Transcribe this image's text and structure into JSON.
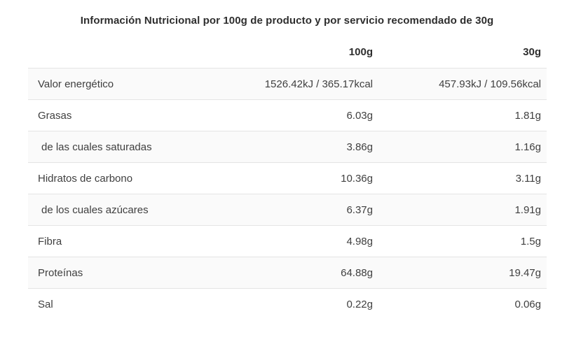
{
  "title": "Información Nutricional por 100g de producto y por servicio recomendado de 30g",
  "table": {
    "columns": [
      "100g",
      "30g"
    ],
    "rows": [
      {
        "label": "Valor energético",
        "v100": "1526.42kJ / 365.17kcal",
        "v30": "457.93kJ / 109.56kcal",
        "indent": false
      },
      {
        "label": "Grasas",
        "v100": "6.03g",
        "v30": "1.81g",
        "indent": false
      },
      {
        "label": "de las cuales saturadas",
        "v100": "3.86g",
        "v30": "1.16g",
        "indent": true
      },
      {
        "label": "Hidratos de carbono",
        "v100": "10.36g",
        "v30": "3.11g",
        "indent": false
      },
      {
        "label": "de los cuales azúcares",
        "v100": "6.37g",
        "v30": "1.91g",
        "indent": true
      },
      {
        "label": "Fibra",
        "v100": "4.98g",
        "v30": "1.5g",
        "indent": false
      },
      {
        "label": "Proteínas",
        "v100": "64.88g",
        "v30": "19.47g",
        "indent": false
      },
      {
        "label": "Sal",
        "v100": "0.22g",
        "v30": "0.06g",
        "indent": false
      }
    ]
  },
  "colors": {
    "background": "#ffffff",
    "title_text": "#2e2e2e",
    "body_text": "#3f3f3f",
    "divider": "#e4e4e4",
    "alt_row_bg": "#fafafa"
  }
}
